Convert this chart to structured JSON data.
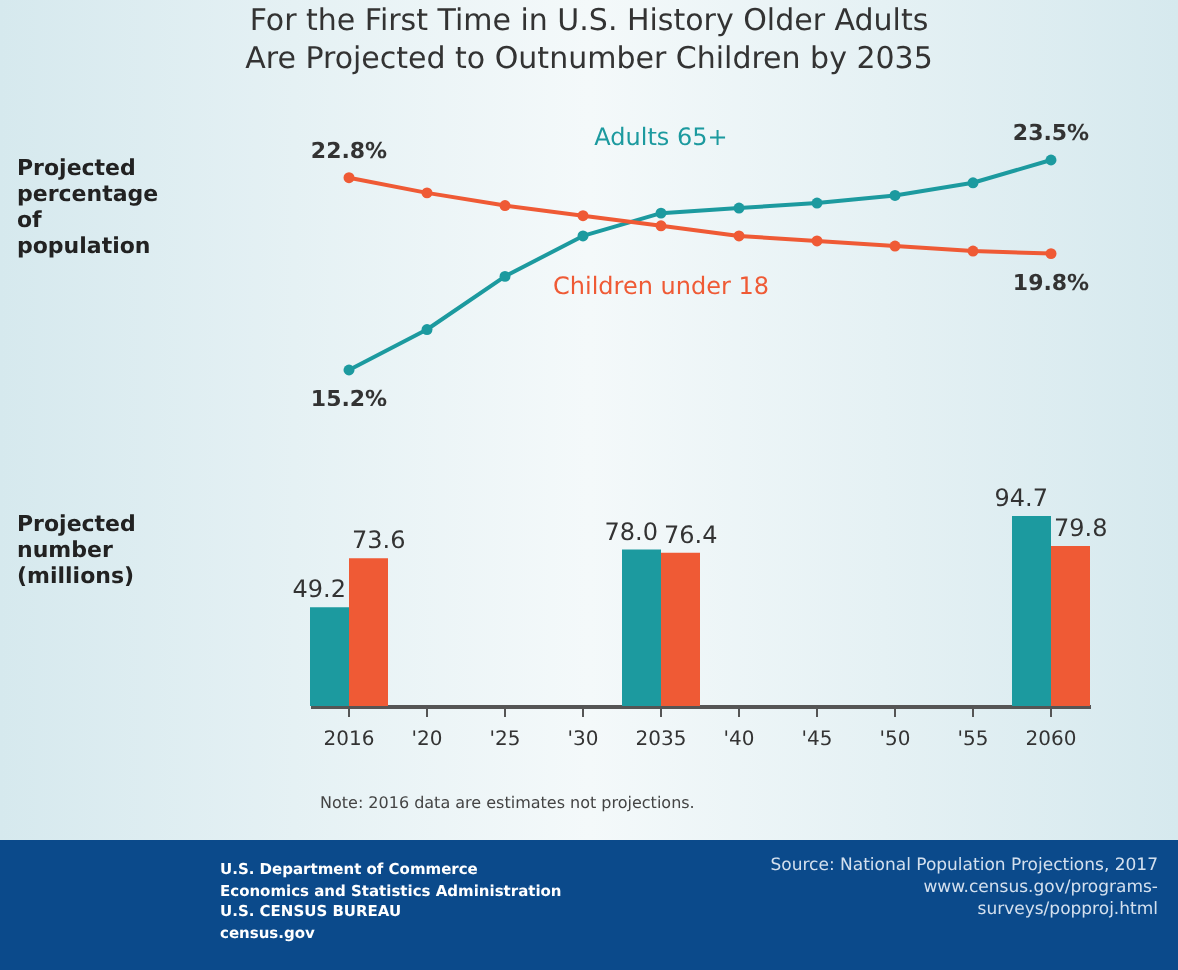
{
  "chart_data": [
    {
      "type": "line",
      "title": "For the First Time in U.S. History Older Adults Are Projected to Outnumber Children by 2035",
      "ylabel": "Projected percentage of population",
      "categories": [
        null,
        null,
        null,
        null,
        null,
        null,
        null,
        null,
        null,
        null
      ],
      "grid": false,
      "legend": false,
      "marker": "circle",
      "line_style": "solid",
      "series": [
        {
          "name": "Adults 65+",
          "color": "#1c9a9f",
          "values": [
            15.2,
            16.8,
            18.9,
            20.5,
            21.4,
            21.6,
            21.8,
            22.1,
            22.6,
            23.5
          ],
          "value_labels": [
            "15.2%",
            null,
            null,
            null,
            null,
            null,
            null,
            null,
            null,
            "23.5%"
          ]
        },
        {
          "name": "Children under 18",
          "color": "#ef5a35",
          "values": [
            22.8,
            22.2,
            21.7,
            21.3,
            20.9,
            20.5,
            20.3,
            20.1,
            19.9,
            19.8
          ],
          "value_labels": [
            "22.8%",
            null,
            null,
            null,
            null,
            null,
            null,
            null,
            null,
            "19.8%"
          ]
        }
      ]
    },
    {
      "type": "bar",
      "ylabel": "Projected number (millions)",
      "categories": [
        "2016",
        "'20",
        "'25",
        "'30",
        "2035",
        "'40",
        "'45",
        "'50",
        "'55",
        "2060"
      ],
      "grid": false,
      "legend": false,
      "tick_labels": "x",
      "series": [
        {
          "color": "#1c9a9f",
          "values": [
            49.2,
            null,
            null,
            null,
            78.0,
            null,
            null,
            null,
            null,
            94.7
          ],
          "value_labels": [
            "49.2",
            null,
            null,
            null,
            "78.0",
            null,
            null,
            null,
            null,
            "94.7"
          ]
        },
        {
          "color": "#ef5a35",
          "values": [
            73.6,
            null,
            null,
            null,
            76.4,
            null,
            null,
            null,
            null,
            79.8
          ],
          "value_labels": [
            "73.6",
            null,
            null,
            null,
            "76.4",
            null,
            null,
            null,
            null,
            "79.8"
          ]
        }
      ],
      "annotations": [
        "Note: 2016 data are estimates not projections.",
        "U.S. Department of Commerce",
        "Economics and Statistics Administration",
        "U.S. CENSUS BUREAU",
        "census.gov",
        "Source: National Population Projections, 2017 www.census.gov/programs-surveys/popproj.html"
      ]
    }
  ]
}
